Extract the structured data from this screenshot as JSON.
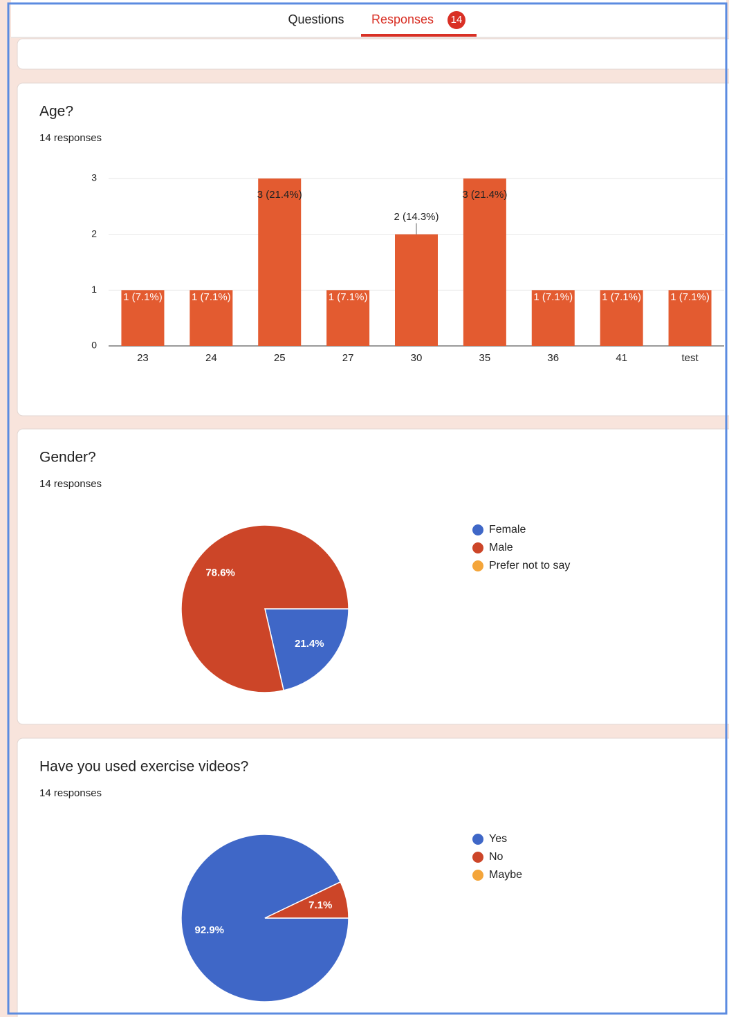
{
  "tabs": [
    "Questions",
    "Responses"
  ],
  "responses_badge": 14,
  "chart_data": [
    {
      "type": "bar",
      "title": "Age?",
      "subtitle": "14 responses",
      "categories": [
        "23",
        "24",
        "25",
        "27",
        "30",
        "35",
        "36",
        "41",
        "test"
      ],
      "values": [
        1,
        1,
        3,
        1,
        2,
        3,
        1,
        1,
        1
      ],
      "value_labels": [
        "1 (7.1%)",
        "1 (7.1%)",
        "3 (21.4%)",
        "1 (7.1%)",
        "2 (14.3%)",
        "3 (21.4%)",
        "1 (7.1%)",
        "1 (7.1%)",
        "1 (7.1%)"
      ],
      "color": "#e35b30",
      "ylim": [
        0,
        3
      ],
      "yticks": [
        0,
        1,
        2,
        3
      ],
      "grid": true
    },
    {
      "type": "pie",
      "title": "Gender?",
      "subtitle": "14 responses",
      "categories": [
        "Female",
        "Male",
        "Prefer not to say"
      ],
      "values": [
        21.4,
        78.6,
        0
      ],
      "value_labels": [
        "21.4%",
        "78.6%",
        null
      ],
      "colors": [
        "#3f67c7",
        "#cc4528",
        "#f4a53a"
      ]
    },
    {
      "type": "pie",
      "title": "Have you used exercise videos?",
      "subtitle": "14 responses",
      "categories": [
        "Yes",
        "No",
        "Maybe"
      ],
      "values": [
        92.9,
        7.1,
        0
      ],
      "value_labels": [
        "92.9%",
        "7.1%",
        null
      ],
      "colors": [
        "#3f67c7",
        "#cc4528",
        "#f4a53a"
      ]
    }
  ]
}
